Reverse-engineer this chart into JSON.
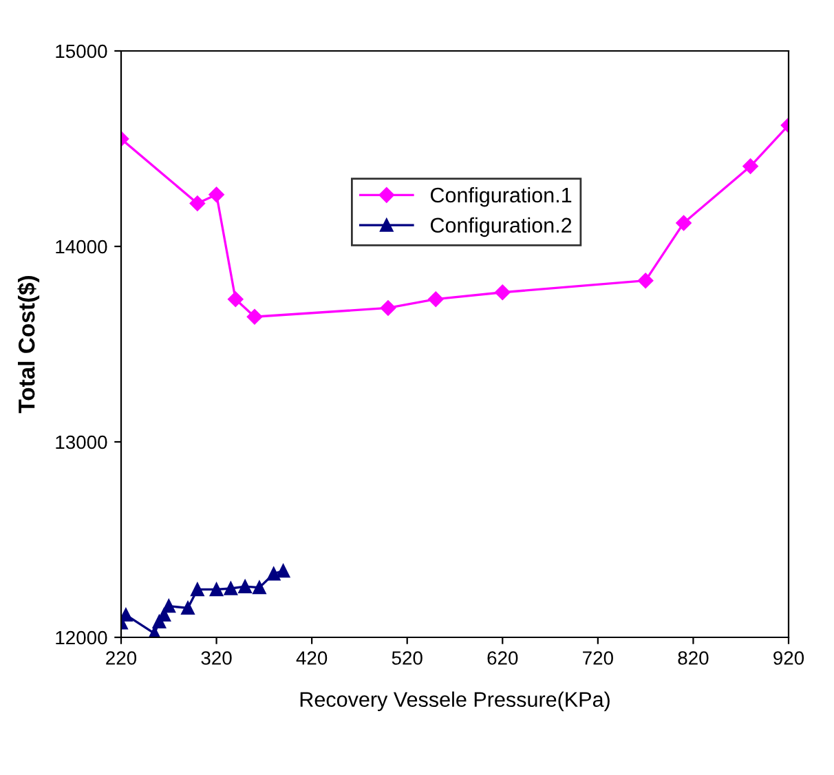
{
  "chart_data": {
    "type": "line",
    "xlabel": "Recovery Vessele Pressure(KPa)",
    "ylabel": "Total Cost($)",
    "xlim": [
      220,
      920
    ],
    "xticks": [
      220,
      320,
      420,
      520,
      620,
      720,
      820,
      920
    ],
    "ylim": [
      12000,
      15000
    ],
    "yticks": [
      12000,
      13000,
      14000,
      15000
    ],
    "grid": false,
    "legend": "top right",
    "series": [
      {
        "name": "Configuration.1",
        "color": "#ff00ff",
        "marker": "diamond",
        "x": [
          220,
          300,
          320,
          340,
          360,
          500,
          550,
          620,
          770,
          810,
          880,
          920
        ],
        "values": [
          14550,
          14220,
          14265,
          13730,
          13640,
          13685,
          13730,
          13765,
          13825,
          14120,
          14410,
          14620
        ]
      },
      {
        "name": "Configuration.2",
        "color": "#000080",
        "marker": "triangle",
        "x": [
          220,
          225,
          255,
          260,
          265,
          270,
          290,
          300,
          320,
          335,
          350,
          365,
          380,
          390
        ],
        "values": [
          12075,
          12115,
          12020,
          12080,
          12115,
          12160,
          12150,
          12245,
          12245,
          12250,
          12260,
          12255,
          12325,
          12340
        ]
      }
    ]
  }
}
